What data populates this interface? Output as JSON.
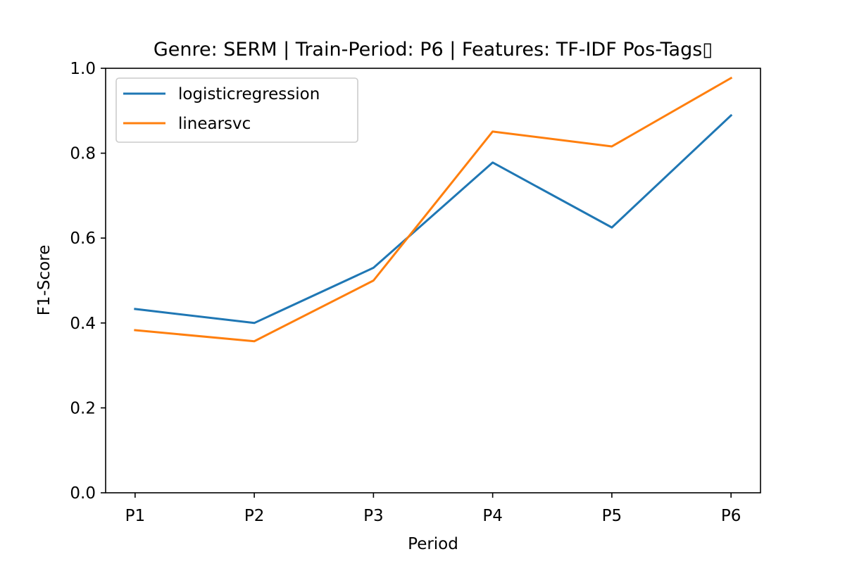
{
  "chart_data": {
    "type": "line",
    "title": "Genre: SERM | Train-Period: P6 | Features: TF-IDF Pos-Tags▯",
    "xlabel": "Period",
    "ylabel": "F1-Score",
    "categories": [
      "P1",
      "P2",
      "P3",
      "P4",
      "P5",
      "P6"
    ],
    "ylim": [
      0,
      1
    ],
    "yticks": [
      "0.0",
      "0.2",
      "0.4",
      "0.6",
      "0.8",
      "1.0"
    ],
    "grid": false,
    "legend_position": "top-left",
    "series": [
      {
        "name": "logisticregression",
        "color": "#1f77b4",
        "values": [
          0.433,
          0.4,
          0.53,
          0.778,
          0.625,
          0.889
        ]
      },
      {
        "name": "linearsvc",
        "color": "#ff7f0e",
        "values": [
          0.383,
          0.357,
          0.5,
          0.851,
          0.816,
          0.977
        ]
      }
    ]
  }
}
